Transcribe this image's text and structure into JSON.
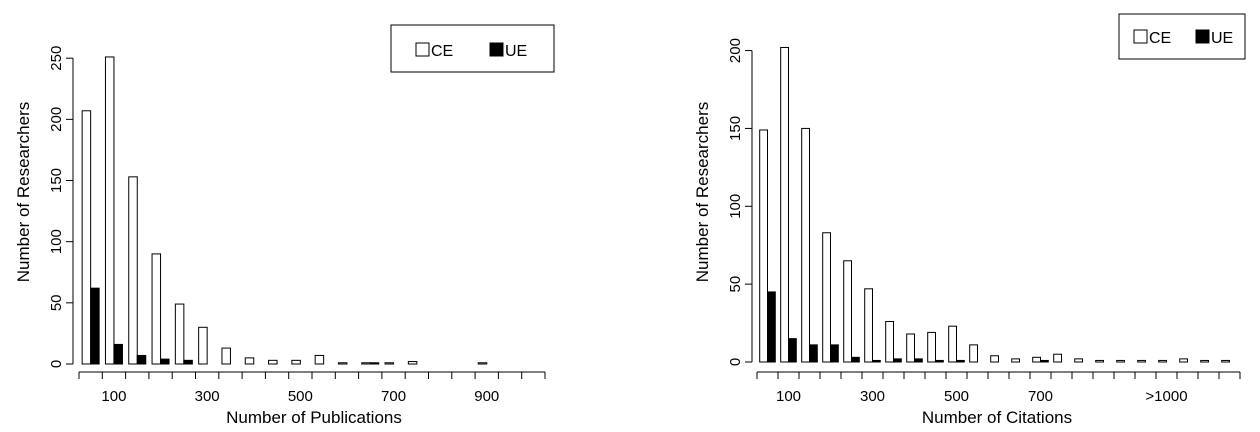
{
  "chart_data": [
    {
      "type": "bar",
      "xlabel": "Number of Publications",
      "ylabel": "Number of Researchers",
      "ylim": [
        0,
        262
      ],
      "yticks": [
        0,
        50,
        100,
        150,
        200,
        250
      ],
      "xtick_labels": [
        "100",
        "300",
        "500",
        "700",
        "900"
      ],
      "xtick_positions": [
        2,
        6,
        10,
        14,
        18
      ],
      "legend": "top-right",
      "categories": [
        "1",
        "2",
        "3",
        "4",
        "5",
        "6",
        "7",
        "8",
        "9",
        "10",
        "11",
        "12",
        "13",
        "14",
        "15",
        "16",
        "17",
        "18",
        "19",
        "20"
      ],
      "series": [
        {
          "name": "CE",
          "fill": "#ffffff",
          "values": [
            207,
            251,
            153,
            90,
            49,
            30,
            13,
            5,
            3,
            3,
            7,
            1,
            1,
            1,
            2,
            0,
            0,
            1,
            0,
            0
          ]
        },
        {
          "name": "UE",
          "fill": "#000000",
          "values": [
            62,
            16,
            7,
            4,
            3,
            0,
            0,
            0,
            0,
            0,
            0,
            0,
            1,
            0,
            0,
            0,
            0,
            0,
            0,
            0
          ]
        }
      ]
    },
    {
      "type": "bar",
      "xlabel": "Number of Citations",
      "ylabel": "Number of Researchers",
      "ylim": [
        0,
        210
      ],
      "yticks": [
        0,
        50,
        100,
        150,
        200
      ],
      "xtick_labels": [
        "100",
        "300",
        "500",
        "700",
        ">1000"
      ],
      "xtick_positions": [
        2,
        6,
        10,
        14,
        20
      ],
      "legend": "top-right",
      "categories": [
        "1",
        "2",
        "3",
        "4",
        "5",
        "6",
        "7",
        "8",
        "9",
        "10",
        "11",
        "12",
        "13",
        "14",
        "15",
        "16",
        "17",
        "18",
        "19",
        "20",
        "21",
        "22",
        "23"
      ],
      "series": [
        {
          "name": "CE",
          "fill": "#ffffff",
          "values": [
            149,
            202,
            150,
            83,
            65,
            47,
            26,
            18,
            19,
            23,
            11,
            4,
            2,
            3,
            5,
            2,
            1,
            1,
            1,
            1,
            2,
            1,
            1
          ]
        },
        {
          "name": "UE",
          "fill": "#000000",
          "values": [
            45,
            15,
            11,
            11,
            3,
            1,
            2,
            2,
            1,
            1,
            0,
            0,
            0,
            1,
            0,
            0,
            0,
            0,
            0,
            0,
            0,
            0,
            0
          ]
        }
      ]
    }
  ]
}
